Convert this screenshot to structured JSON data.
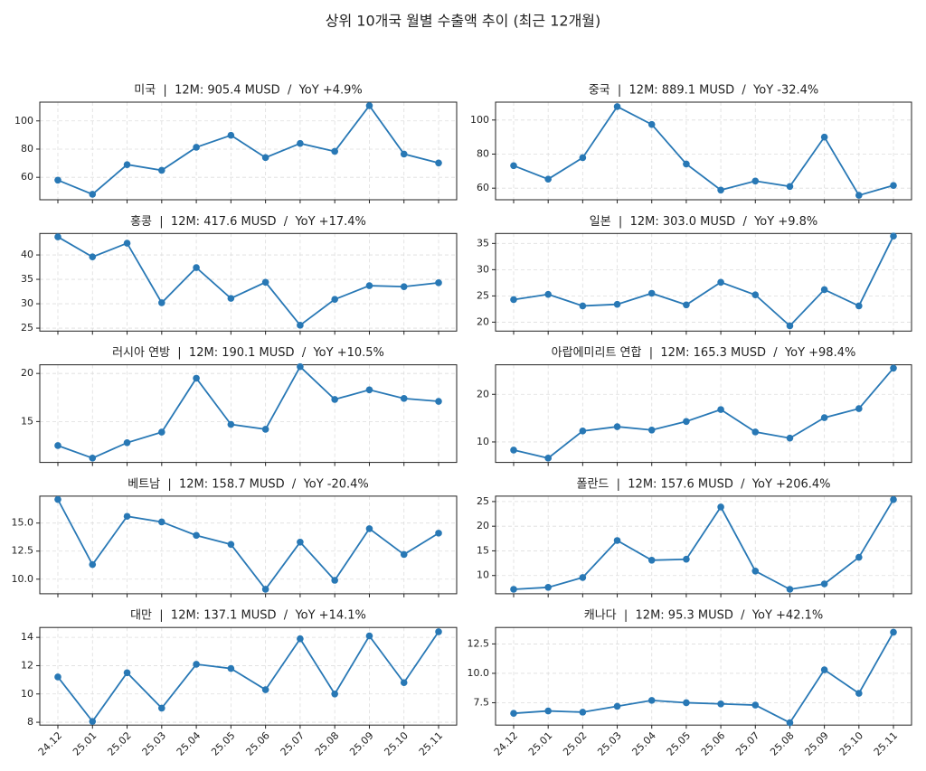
{
  "title": "상위 10개국 월별 수출액 추이 (최근 12개월)",
  "chart_data": [
    {
      "type": "line",
      "title": "미국  |  12M: 905.4 MUSD  /  YoY +4.9%",
      "categories": [
        "24.12",
        "25.01",
        "25.02",
        "25.03",
        "25.04",
        "25.05",
        "25.06",
        "25.07",
        "25.08",
        "25.09",
        "25.10",
        "25.11"
      ],
      "values": [
        58,
        48,
        69,
        65,
        81.3,
        89.8,
        74,
        84,
        78.4,
        110.8,
        76.5,
        70.2
      ],
      "color": "#2878b5",
      "ylim": [
        44.1,
        113.3
      ],
      "yticks": [
        60,
        80,
        100
      ],
      "grid": true,
      "show_x_labels": false
    },
    {
      "type": "line",
      "title": "중국  |  12M: 889.1 MUSD  /  YoY -32.4%",
      "categories": [
        "24.12",
        "25.01",
        "25.02",
        "25.03",
        "25.04",
        "25.05",
        "25.06",
        "25.07",
        "25.08",
        "25.09",
        "25.10",
        "25.11"
      ],
      "values": [
        73.2,
        65.3,
        77.9,
        107.9,
        97.4,
        74.2,
        58.9,
        64.2,
        61,
        90,
        55.8,
        61.6
      ],
      "color": "#2878b5",
      "ylim": [
        53.2,
        110.5
      ],
      "yticks": [
        60,
        80,
        100
      ],
      "grid": true,
      "show_x_labels": false
    },
    {
      "type": "line",
      "title": "홍콩  |  12M: 417.6 MUSD  /  YoY +17.4%",
      "categories": [
        "24.12",
        "25.01",
        "25.02",
        "25.03",
        "25.04",
        "25.05",
        "25.06",
        "25.07",
        "25.08",
        "25.09",
        "25.10",
        "25.11"
      ],
      "values": [
        43.7,
        39.6,
        42.4,
        30.2,
        37.4,
        31.1,
        34.4,
        25.6,
        30.9,
        33.7,
        33.5,
        34.3
      ],
      "color": "#2878b5",
      "ylim": [
        24.4,
        44.4
      ],
      "yticks": [
        25,
        30,
        35,
        40
      ],
      "grid": true,
      "show_x_labels": false
    },
    {
      "type": "line",
      "title": "일본  |  12M: 303.0 MUSD  /  YoY +9.8%",
      "categories": [
        "24.12",
        "25.01",
        "25.02",
        "25.03",
        "25.04",
        "25.05",
        "25.06",
        "25.07",
        "25.08",
        "25.09",
        "25.10",
        "25.11"
      ],
      "values": [
        24.3,
        25.3,
        23.1,
        23.4,
        25.5,
        23.3,
        27.6,
        25.2,
        19.3,
        26.2,
        23.1,
        36.4
      ],
      "color": "#2878b5",
      "ylim": [
        18.3,
        36.9
      ],
      "yticks": [
        20,
        25,
        30,
        35
      ],
      "grid": true,
      "show_x_labels": false
    },
    {
      "type": "line",
      "title": "러시아 연방  |  12M: 190.1 MUSD  /  YoY +10.5%",
      "categories": [
        "24.12",
        "25.01",
        "25.02",
        "25.03",
        "25.04",
        "25.05",
        "25.06",
        "25.07",
        "25.08",
        "25.09",
        "25.10",
        "25.11"
      ],
      "values": [
        12.5,
        11.2,
        12.8,
        13.9,
        19.5,
        14.7,
        14.2,
        20.7,
        17.3,
        18.3,
        17.4,
        17.1
      ],
      "color": "#2878b5",
      "ylim": [
        10.75,
        20.9
      ],
      "yticks": [
        15,
        20
      ],
      "grid": true,
      "show_x_labels": false
    },
    {
      "type": "line",
      "title": "아랍에미리트 연합  |  12M: 165.3 MUSD  /  YoY +98.4%",
      "categories": [
        "24.12",
        "25.01",
        "25.02",
        "25.03",
        "25.04",
        "25.05",
        "25.06",
        "25.07",
        "25.08",
        "25.09",
        "25.10",
        "25.11"
      ],
      "values": [
        8.3,
        6.6,
        12.3,
        13.2,
        12.5,
        14.3,
        16.8,
        12.1,
        10.8,
        15.1,
        17,
        25.5
      ],
      "color": "#2878b5",
      "ylim": [
        5.7,
        26.2
      ],
      "yticks": [
        10,
        20
      ],
      "grid": true,
      "show_x_labels": false
    },
    {
      "type": "line",
      "title": "베트남  |  12M: 158.7 MUSD  /  YoY -20.4%",
      "categories": [
        "24.12",
        "25.01",
        "25.02",
        "25.03",
        "25.04",
        "25.05",
        "25.06",
        "25.07",
        "25.08",
        "25.09",
        "25.10",
        "25.11"
      ],
      "values": [
        17.1,
        11.3,
        15.6,
        15.1,
        13.9,
        13.1,
        9.1,
        13.3,
        9.9,
        14.5,
        12.2,
        14.1
      ],
      "color": "#2878b5",
      "ylim": [
        8.7,
        17.4
      ],
      "yticks": [
        {
          "value": 10,
          "label": "10.0"
        },
        {
          "value": 12.5,
          "label": "12.5"
        },
        {
          "value": 15,
          "label": "15.0"
        }
      ],
      "grid": true,
      "show_x_labels": false
    },
    {
      "type": "line",
      "title": "폴란드  |  12M: 157.6 MUSD  /  YoY +206.4%",
      "categories": [
        "24.12",
        "25.01",
        "25.02",
        "25.03",
        "25.04",
        "25.05",
        "25.06",
        "25.07",
        "25.08",
        "25.09",
        "25.10",
        "25.11"
      ],
      "values": [
        7.2,
        7.6,
        9.6,
        17.1,
        13.1,
        13.3,
        23.9,
        10.9,
        7.2,
        8.3,
        13.7,
        25.4
      ],
      "color": "#2878b5",
      "ylim": [
        6.3,
        26.1
      ],
      "yticks": [
        10,
        15,
        20,
        25
      ],
      "grid": true,
      "show_x_labels": false
    },
    {
      "type": "line",
      "title": "대만  |  12M: 137.1 MUSD  /  YoY +14.1%",
      "categories": [
        "24.12",
        "25.01",
        "25.02",
        "25.03",
        "25.04",
        "25.05",
        "25.06",
        "25.07",
        "25.08",
        "25.09",
        "25.10",
        "25.11"
      ],
      "values": [
        11.2,
        8.06,
        11.5,
        9,
        12.1,
        11.8,
        10.3,
        13.9,
        10,
        14.1,
        10.8,
        14.4
      ],
      "color": "#2878b5",
      "ylim": [
        7.8,
        14.7
      ],
      "yticks": [
        8,
        10,
        12,
        14
      ],
      "grid": true,
      "show_x_labels": true
    },
    {
      "type": "line",
      "title": "캐나다  |  12M: 95.3 MUSD  /  YoY +42.1%",
      "categories": [
        "24.12",
        "25.01",
        "25.02",
        "25.03",
        "25.04",
        "25.05",
        "25.06",
        "25.07",
        "25.08",
        "25.09",
        "25.10",
        "25.11"
      ],
      "values": [
        6.6,
        6.8,
        6.7,
        7.2,
        7.7,
        7.5,
        7.4,
        7.3,
        5.8,
        10.3,
        8.3,
        13.5
      ],
      "color": "#2878b5",
      "ylim": [
        5.6,
        13.9
      ],
      "yticks": [
        {
          "value": 7.5,
          "label": "7.5"
        },
        {
          "value": 10,
          "label": "10.0"
        },
        {
          "value": 12.5,
          "label": "12.5"
        }
      ],
      "grid": true,
      "show_x_labels": true
    }
  ]
}
